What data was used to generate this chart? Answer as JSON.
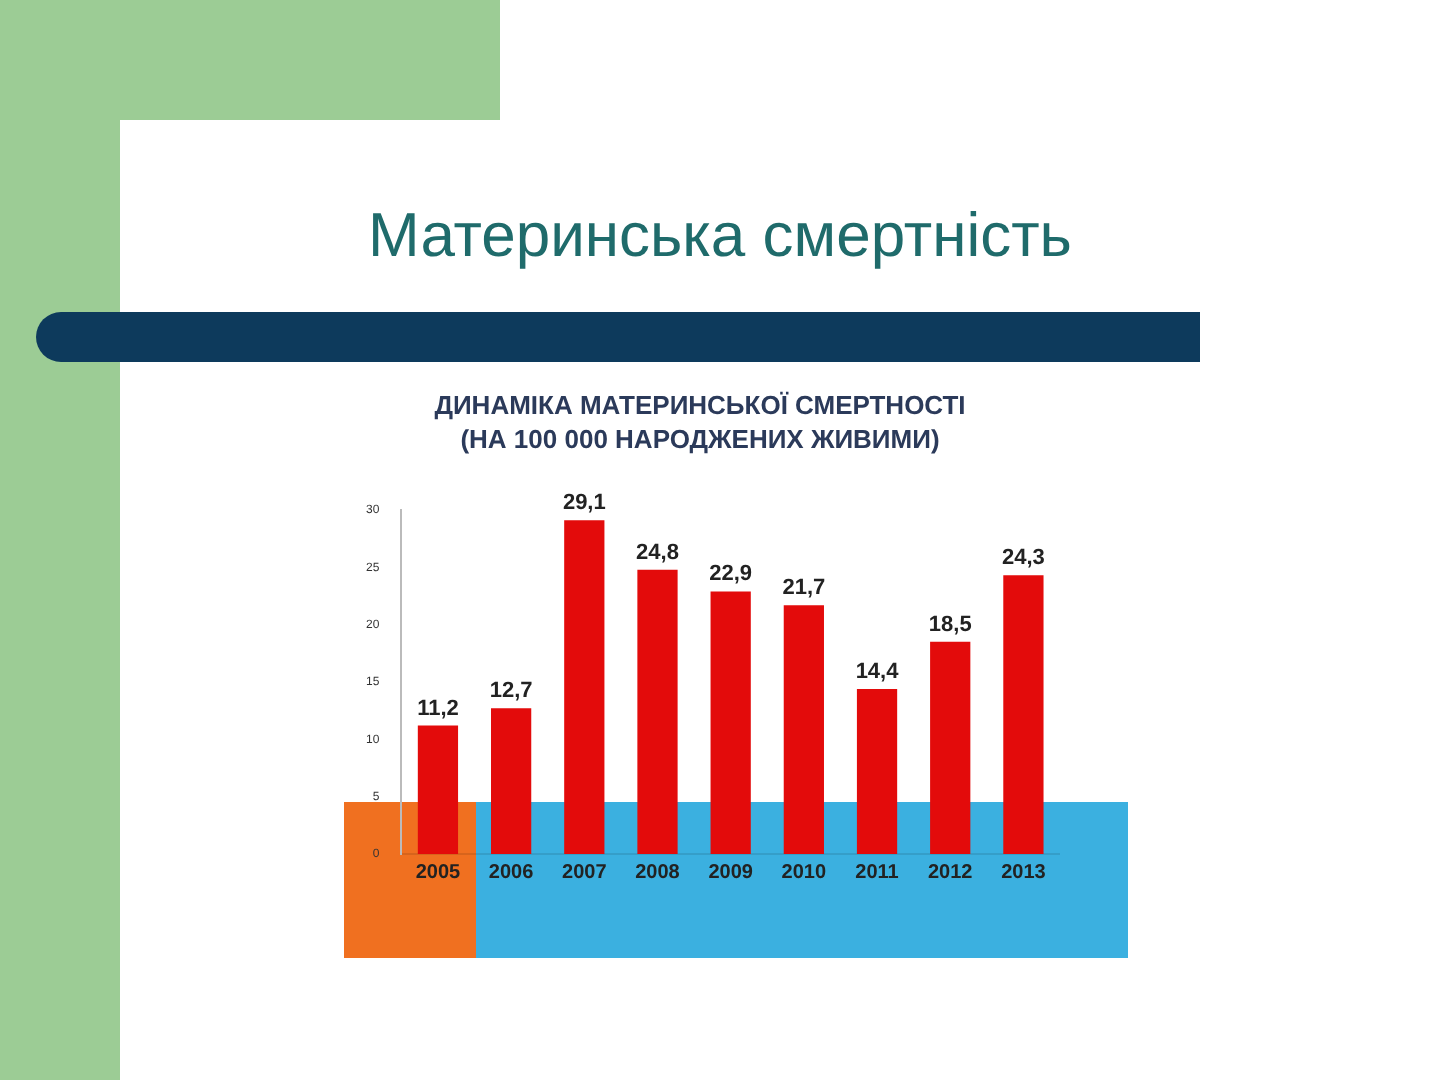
{
  "chart_data": {
    "type": "bar",
    "title": "Материнська смертність",
    "subtitle": "ДИНАМІКА МАТЕРИНСЬКОЇ СМЕРТНОСТІ (НА 100 000 НАРОДЖЕНИХ ЖИВИМИ)",
    "categories": [
      "2005",
      "2006",
      "2007",
      "2008",
      "2009",
      "2010",
      "2011",
      "2012",
      "2013"
    ],
    "values": [
      11.2,
      12.7,
      29.1,
      24.8,
      22.9,
      21.7,
      14.4,
      18.5,
      24.3
    ],
    "value_labels": [
      "11,2",
      "12,7",
      "29,1",
      "24,8",
      "22,9",
      "21,7",
      "14,4",
      "18,5",
      "24,3"
    ],
    "color": "#e30b0b",
    "ylim": [
      0,
      30
    ],
    "yticks": [
      0,
      5,
      10,
      15,
      20,
      25,
      30
    ],
    "grid": false,
    "legend": false
  }
}
